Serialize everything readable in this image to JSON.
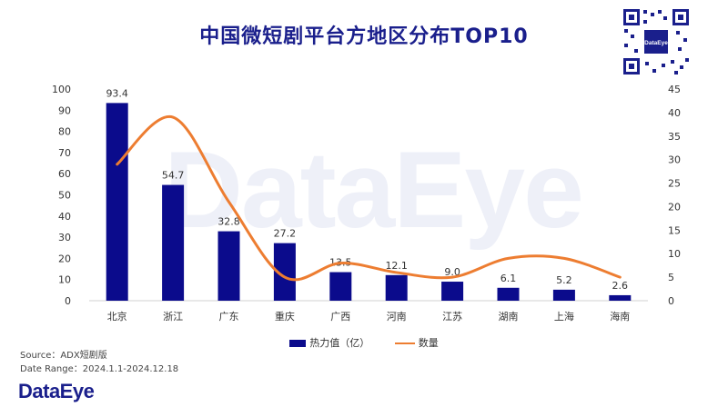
{
  "title": "中国微短剧平台方地区分布TOP10",
  "watermark": "DataEye",
  "brand": "DataEye",
  "qr_label": "DataEye",
  "source_line": "Source：ADX短剧版",
  "date_line": "Date Range：2024.1.1-2024.12.18",
  "colors": {
    "bar": "#0b0b8c",
    "line": "#ed7d31",
    "title": "#1a1f8c"
  },
  "chart_data": {
    "type": "bar",
    "title": "中国微短剧平台方地区分布TOP10",
    "categories": [
      "北京",
      "浙江",
      "广东",
      "重庆",
      "广西",
      "河南",
      "江苏",
      "湖南",
      "上海",
      "海南"
    ],
    "series": [
      {
        "name": "热力值（亿）",
        "type": "bar",
        "axis": "left",
        "values": [
          93.4,
          54.7,
          32.8,
          27.2,
          13.5,
          12.1,
          9.0,
          6.1,
          5.2,
          2.6
        ],
        "labels": [
          "93.4",
          "54.7",
          "32.8",
          "27.2",
          "13.5",
          "12.1",
          "9.0",
          "6.1",
          "5.2",
          "2.6"
        ]
      },
      {
        "name": "数量",
        "type": "line",
        "axis": "right",
        "smooth": true,
        "values": [
          29,
          39,
          21,
          5,
          8,
          6,
          5,
          9,
          9,
          5
        ]
      }
    ],
    "ylim_left": [
      0,
      100
    ],
    "yticks_left": [
      0,
      10,
      20,
      30,
      40,
      50,
      60,
      70,
      80,
      90,
      100
    ],
    "ylim_right": [
      0,
      45
    ],
    "yticks_right": [
      0,
      5,
      10,
      15,
      20,
      25,
      30,
      35,
      40,
      45
    ],
    "grid": false,
    "legend_position": "bottom"
  }
}
